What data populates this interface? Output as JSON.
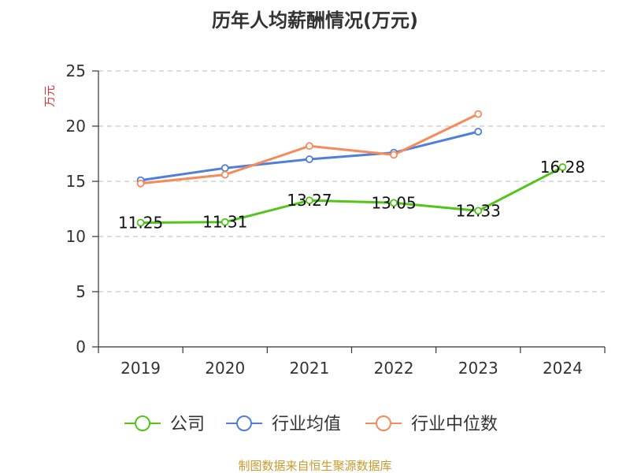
{
  "chart_data": {
    "type": "line",
    "title": "历年人均薪酬情况(万元)",
    "ylabel": "万元",
    "xlabel": "",
    "categories": [
      "2019",
      "2020",
      "2021",
      "2022",
      "2023",
      "2024"
    ],
    "ylim": [
      0,
      25
    ],
    "yticks": [
      0,
      5,
      10,
      15,
      20,
      25
    ],
    "grid": true,
    "legend_position": "bottom",
    "series": [
      {
        "name": "公司",
        "color": "#52c41a",
        "values": [
          11.25,
          11.31,
          13.27,
          13.05,
          12.33,
          16.28
        ],
        "labels": [
          "11.25",
          "11.31",
          "13.27",
          "13.05",
          "12.33",
          "16.28"
        ]
      },
      {
        "name": "行业均值",
        "color": "#4f7fdb",
        "values": [
          15.1,
          16.2,
          17.0,
          17.6,
          19.5,
          null
        ]
      },
      {
        "name": "行业中位数",
        "color": "#f58a5c",
        "values": [
          14.8,
          15.6,
          18.2,
          17.4,
          21.1,
          null
        ]
      }
    ],
    "source": "制图数据来自恒生聚源数据库"
  }
}
